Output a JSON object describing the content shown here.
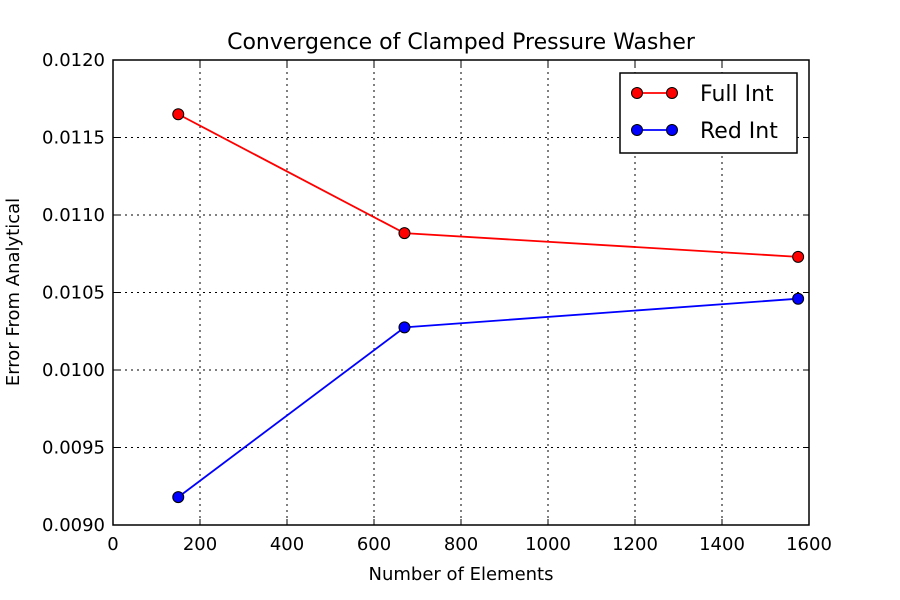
{
  "chart_data": {
    "type": "line",
    "title": "Convergence of Clamped Pressure Washer",
    "xlabel": "Number of Elements",
    "ylabel": "Error From Analytical",
    "xlim": [
      0,
      1600
    ],
    "ylim": [
      0.009,
      0.012
    ],
    "xticks": [
      "0",
      "200",
      "400",
      "600",
      "800",
      "1000",
      "1200",
      "1400",
      "1600"
    ],
    "yticks": [
      "0.0090",
      "0.0095",
      "0.0100",
      "0.0105",
      "0.0110",
      "0.0115",
      "0.0120"
    ],
    "grid": true,
    "legend_position": "top-right",
    "series": [
      {
        "name": "Full Int",
        "color": "#ff0000",
        "x": [
          150,
          670,
          1575
        ],
        "y": [
          0.01165,
          0.010883,
          0.01073
        ]
      },
      {
        "name": "Red Int",
        "color": "#0000ff",
        "x": [
          150,
          670,
          1575
        ],
        "y": [
          0.00918,
          0.010275,
          0.01046
        ]
      }
    ]
  }
}
